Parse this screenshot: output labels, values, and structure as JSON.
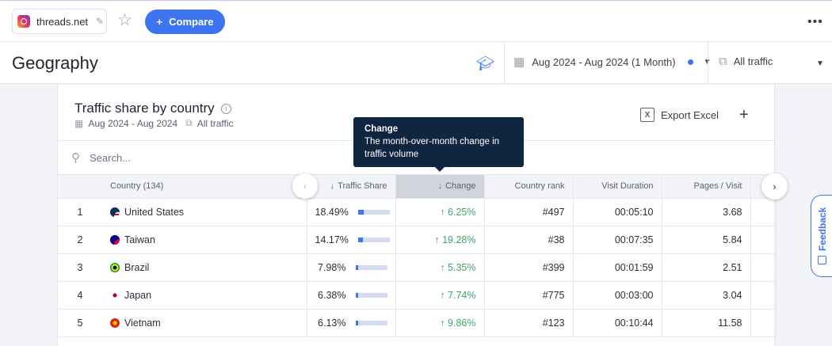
{
  "topbar": {
    "site_name": "threads.net",
    "compare_label": "Compare",
    "compare_plus": "+",
    "menu_glyph": "•••"
  },
  "header": {
    "title": "Geography",
    "date_range": "Aug 2024 - Aug 2024 (1 Month)",
    "traffic_filter": "All traffic"
  },
  "card": {
    "title": "Traffic share by country",
    "date_range": "Aug 2024 - Aug 2024",
    "traffic_filter": "All traffic",
    "export_label": "Export Excel",
    "search_placeholder": "Search..."
  },
  "table": {
    "columns": {
      "country": "Country (134)",
      "traffic_share": "Traffic Share",
      "change": "Change",
      "country_rank": "Country rank",
      "visit_duration": "Visit Duration",
      "pages_visit": "Pages / Visit"
    },
    "rows": [
      {
        "rank": "1",
        "country": "United States",
        "share": "18.49%",
        "share_fraction": 0.1849,
        "change": "6.25%",
        "country_rank": "#497",
        "duration": "00:05:10",
        "pages": "3.68"
      },
      {
        "rank": "2",
        "country": "Taiwan",
        "share": "14.17%",
        "share_fraction": 0.1417,
        "change": "19.28%",
        "country_rank": "#38",
        "duration": "00:07:35",
        "pages": "5.84"
      },
      {
        "rank": "3",
        "country": "Brazil",
        "share": "7.98%",
        "share_fraction": 0.0798,
        "change": "5.35%",
        "country_rank": "#399",
        "duration": "00:01:59",
        "pages": "2.51"
      },
      {
        "rank": "4",
        "country": "Japan",
        "share": "6.38%",
        "share_fraction": 0.0638,
        "change": "7.74%",
        "country_rank": "#775",
        "duration": "00:03:00",
        "pages": "3.04"
      },
      {
        "rank": "5",
        "country": "Vietnam",
        "share": "6.13%",
        "share_fraction": 0.0613,
        "change": "9.86%",
        "country_rank": "#123",
        "duration": "00:10:44",
        "pages": "11.58"
      }
    ]
  },
  "tooltip": {
    "title": "Change",
    "body": "The month-over-month change in traffic volume"
  },
  "feedback_label": "Feedback",
  "colors": {
    "accent": "#3e74f0",
    "positive": "#3da66a",
    "tooltip_bg": "#0f2540"
  }
}
